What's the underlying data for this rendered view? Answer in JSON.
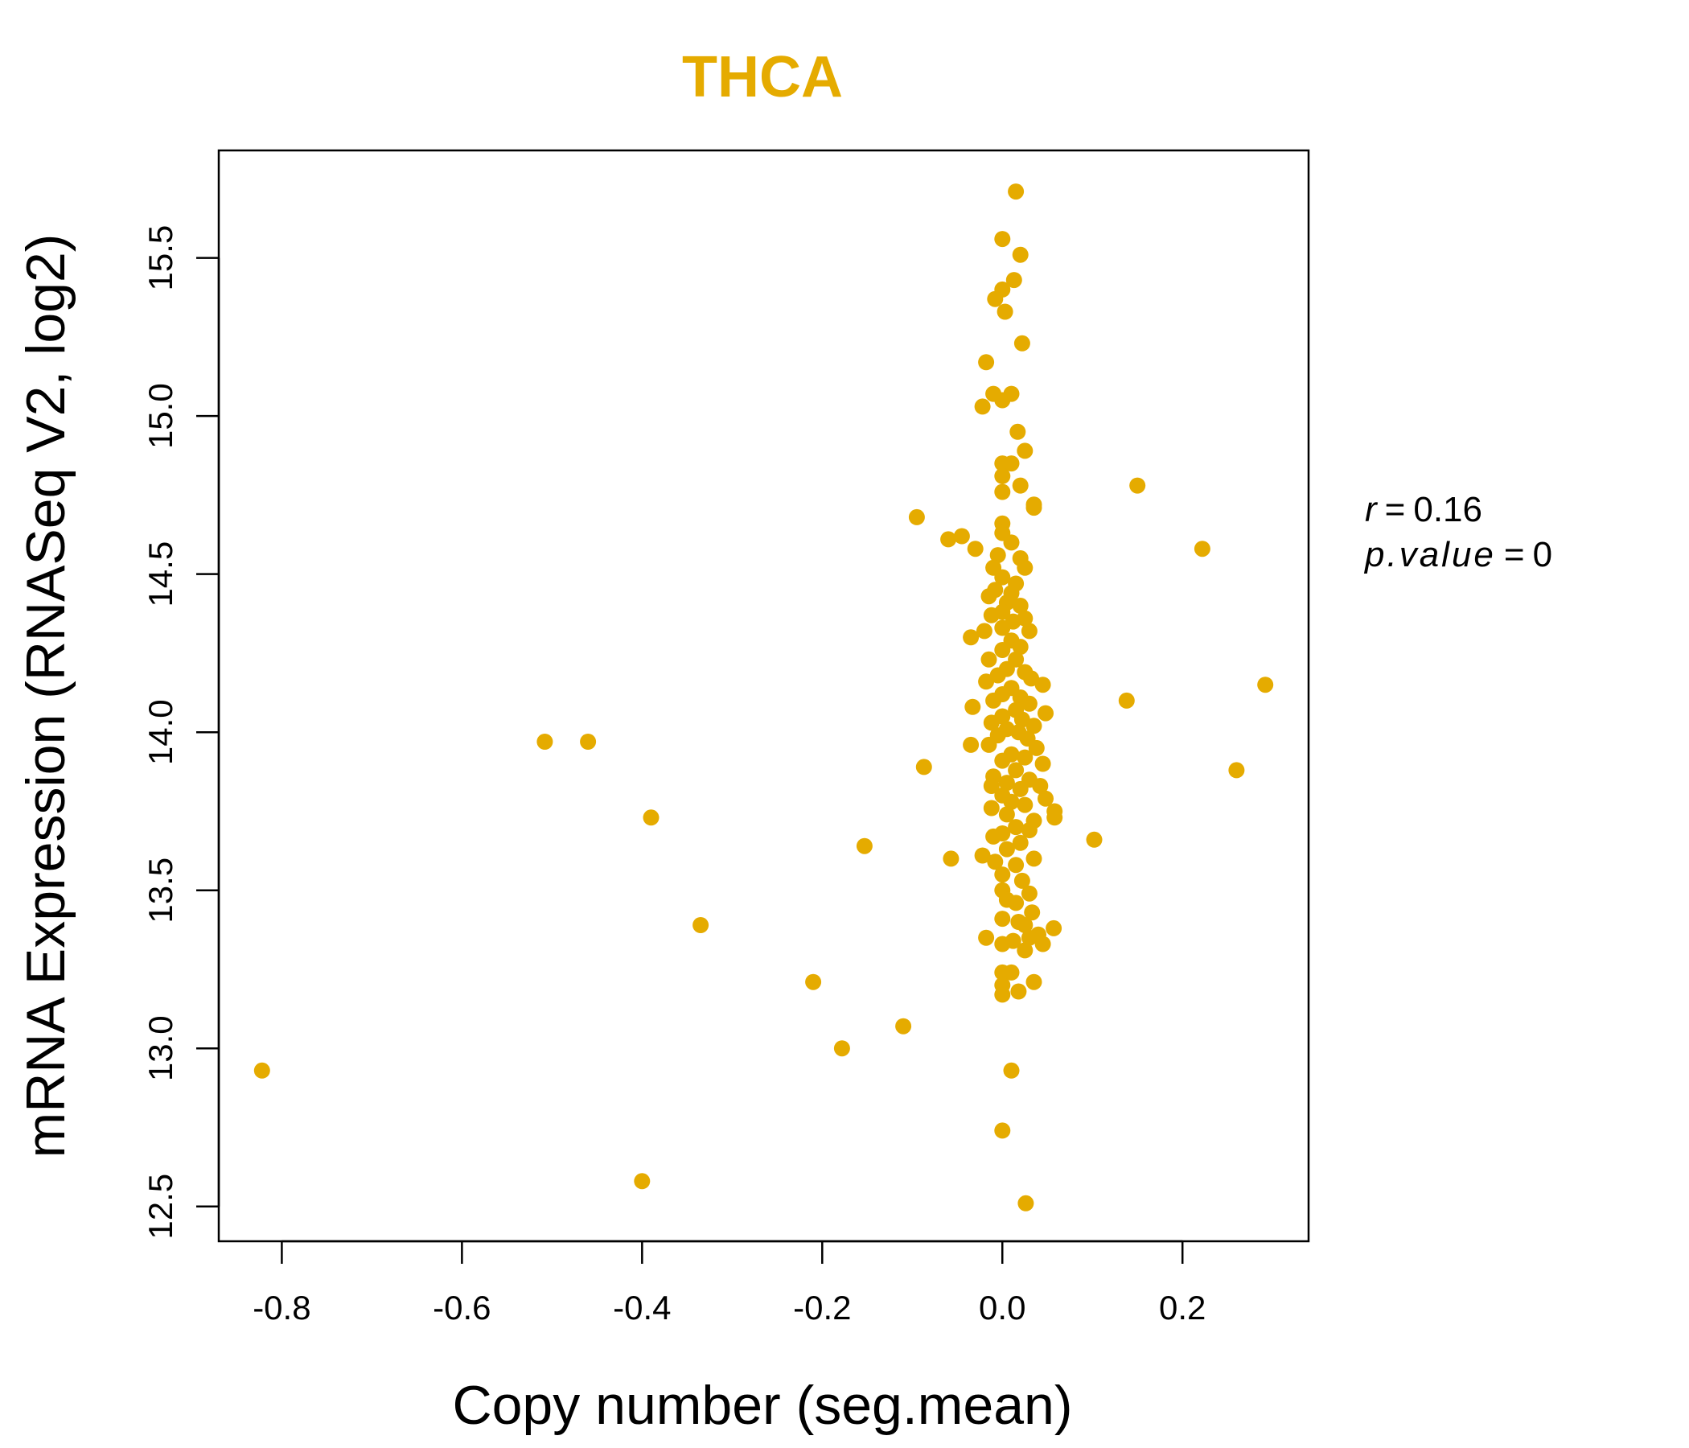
{
  "colors": {
    "point": "#E5AB00",
    "title": "#E5AB00",
    "axis": "#000000"
  },
  "chart_data": {
    "type": "scatter",
    "title": "THCA",
    "xlabel": "Copy number (seg.mean)",
    "ylabel": "mRNA Expression (RNASeq V2, log2)",
    "xlim": [
      -0.87,
      0.34
    ],
    "ylim": [
      12.39,
      15.84
    ],
    "xticks": [
      -0.8,
      -0.6,
      -0.4,
      -0.2,
      0.0,
      0.2
    ],
    "xtick_labels": [
      "-0.8",
      "-0.6",
      "-0.4",
      "-0.2",
      "0.0",
      "0.2"
    ],
    "yticks": [
      12.5,
      13.0,
      13.5,
      14.0,
      14.5,
      15.0,
      15.5
    ],
    "ytick_labels": [
      "12.5",
      "13.0",
      "13.5",
      "14.0",
      "14.5",
      "15.0",
      "15.5"
    ],
    "grid": false,
    "annotation": {
      "r_label": "r",
      "r_value": "0.16",
      "p_label": "p.value",
      "p_value": "0"
    },
    "points": [
      [
        0.015,
        15.71
      ],
      [
        0.0,
        15.56
      ],
      [
        0.02,
        15.51
      ],
      [
        0.013,
        15.43
      ],
      [
        0.0,
        15.4
      ],
      [
        -0.008,
        15.37
      ],
      [
        0.003,
        15.33
      ],
      [
        0.022,
        15.23
      ],
      [
        -0.018,
        15.17
      ],
      [
        -0.01,
        15.07
      ],
      [
        0.0,
        15.05
      ],
      [
        0.01,
        15.07
      ],
      [
        -0.022,
        15.03
      ],
      [
        0.017,
        14.95
      ],
      [
        0.025,
        14.89
      ],
      [
        0.0,
        14.85
      ],
      [
        0.01,
        14.85
      ],
      [
        0.0,
        14.81
      ],
      [
        0.02,
        14.78
      ],
      [
        0.0,
        14.76
      ],
      [
        0.035,
        14.72
      ],
      [
        0.035,
        14.71
      ],
      [
        -0.095,
        14.68
      ],
      [
        -0.06,
        14.61
      ],
      [
        -0.045,
        14.62
      ],
      [
        -0.03,
        14.58
      ],
      [
        0.15,
        14.78
      ],
      [
        0.222,
        14.58
      ],
      [
        0.0,
        14.66
      ],
      [
        0.0,
        14.63
      ],
      [
        0.01,
        14.6
      ],
      [
        -0.005,
        14.56
      ],
      [
        0.02,
        14.55
      ],
      [
        -0.01,
        14.52
      ],
      [
        0.025,
        14.52
      ],
      [
        0.0,
        14.49
      ],
      [
        0.015,
        14.47
      ],
      [
        -0.008,
        14.45
      ],
      [
        0.01,
        14.44
      ],
      [
        -0.015,
        14.43
      ],
      [
        0.005,
        14.41
      ],
      [
        0.02,
        14.4
      ],
      [
        0.0,
        14.38
      ],
      [
        -0.012,
        14.37
      ],
      [
        0.012,
        14.35
      ],
      [
        0.025,
        14.36
      ],
      [
        0.0,
        14.33
      ],
      [
        -0.02,
        14.32
      ],
      [
        0.03,
        14.32
      ],
      [
        -0.035,
        14.3
      ],
      [
        0.01,
        14.29
      ],
      [
        0.02,
        14.27
      ],
      [
        0.0,
        14.26
      ],
      [
        -0.015,
        14.23
      ],
      [
        0.015,
        14.23
      ],
      [
        0.005,
        14.2
      ],
      [
        0.025,
        14.19
      ],
      [
        -0.005,
        14.18
      ],
      [
        0.032,
        14.17
      ],
      [
        -0.018,
        14.16
      ],
      [
        0.045,
        14.15
      ],
      [
        0.01,
        14.14
      ],
      [
        0.0,
        14.12
      ],
      [
        0.02,
        14.11
      ],
      [
        0.138,
        14.1
      ],
      [
        0.292,
        14.15
      ],
      [
        -0.01,
        14.1
      ],
      [
        0.03,
        14.09
      ],
      [
        -0.033,
        14.08
      ],
      [
        0.015,
        14.07
      ],
      [
        0.048,
        14.06
      ],
      [
        0.0,
        14.05
      ],
      [
        0.022,
        14.04
      ],
      [
        -0.012,
        14.03
      ],
      [
        0.035,
        14.02
      ],
      [
        0.005,
        14.01
      ],
      [
        0.018,
        14.0
      ],
      [
        -0.005,
        13.99
      ],
      [
        0.028,
        13.98
      ],
      [
        -0.508,
        13.97
      ],
      [
        -0.46,
        13.97
      ],
      [
        -0.035,
        13.96
      ],
      [
        -0.015,
        13.96
      ],
      [
        0.038,
        13.95
      ],
      [
        0.01,
        13.93
      ],
      [
        0.025,
        13.92
      ],
      [
        0.0,
        13.91
      ],
      [
        -0.087,
        13.89
      ],
      [
        0.045,
        13.9
      ],
      [
        0.26,
        13.88
      ],
      [
        0.015,
        13.88
      ],
      [
        -0.01,
        13.86
      ],
      [
        0.03,
        13.85
      ],
      [
        0.005,
        13.84
      ],
      [
        0.042,
        13.83
      ],
      [
        -0.012,
        13.83
      ],
      [
        0.02,
        13.82
      ],
      [
        0.0,
        13.8
      ],
      [
        0.048,
        13.79
      ],
      [
        0.01,
        13.78
      ],
      [
        0.025,
        13.77
      ],
      [
        -0.012,
        13.76
      ],
      [
        0.058,
        13.75
      ],
      [
        0.058,
        13.73
      ],
      [
        0.005,
        13.74
      ],
      [
        -0.39,
        13.73
      ],
      [
        0.035,
        13.72
      ],
      [
        0.015,
        13.7
      ],
      [
        0.03,
        13.69
      ],
      [
        0.0,
        13.68
      ],
      [
        -0.01,
        13.67
      ],
      [
        0.102,
        13.66
      ],
      [
        0.02,
        13.65
      ],
      [
        -0.153,
        13.64
      ],
      [
        0.005,
        13.63
      ],
      [
        -0.022,
        13.61
      ],
      [
        -0.057,
        13.6
      ],
      [
        0.035,
        13.6
      ],
      [
        -0.008,
        13.59
      ],
      [
        0.015,
        13.58
      ],
      [
        0.0,
        13.55
      ],
      [
        0.022,
        13.53
      ],
      [
        0.0,
        13.5
      ],
      [
        0.03,
        13.49
      ],
      [
        0.005,
        13.47
      ],
      [
        0.015,
        13.46
      ],
      [
        0.033,
        13.43
      ],
      [
        0.0,
        13.41
      ],
      [
        0.018,
        13.4
      ],
      [
        0.025,
        13.39
      ],
      [
        -0.335,
        13.39
      ],
      [
        0.057,
        13.38
      ],
      [
        0.04,
        13.36
      ],
      [
        -0.018,
        13.35
      ],
      [
        0.03,
        13.35
      ],
      [
        0.0,
        13.33
      ],
      [
        0.012,
        13.34
      ],
      [
        0.045,
        13.33
      ],
      [
        0.025,
        13.31
      ],
      [
        0.0,
        13.24
      ],
      [
        0.01,
        13.24
      ],
      [
        -0.21,
        13.21
      ],
      [
        0.035,
        13.21
      ],
      [
        0.0,
        13.2
      ],
      [
        0.018,
        13.18
      ],
      [
        0.0,
        13.17
      ],
      [
        -0.11,
        13.07
      ],
      [
        -0.178,
        13.0
      ],
      [
        0.01,
        12.93
      ],
      [
        -0.822,
        12.93
      ],
      [
        0.0,
        12.74
      ],
      [
        -0.4,
        12.58
      ],
      [
        0.026,
        12.51
      ]
    ]
  }
}
